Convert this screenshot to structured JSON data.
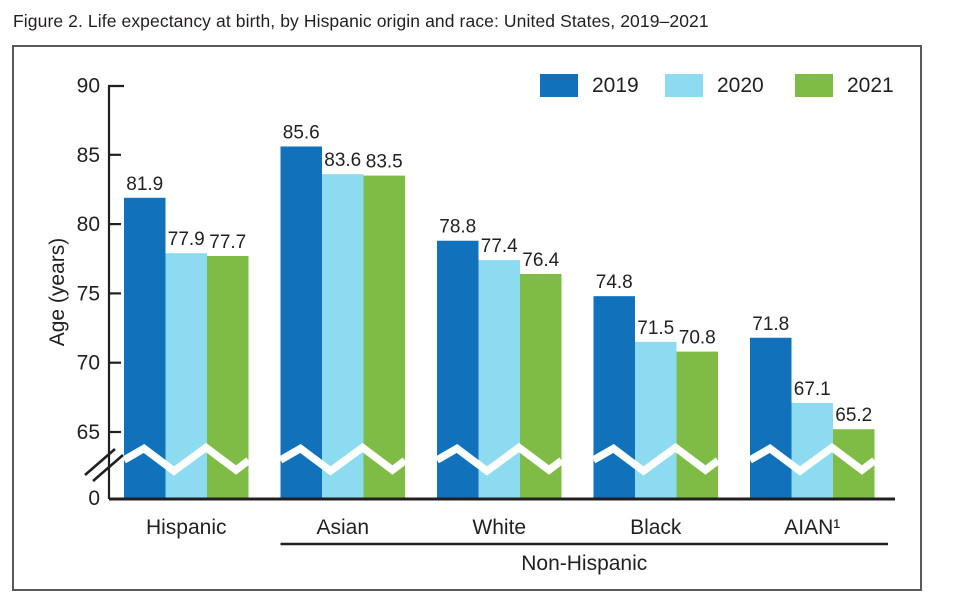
{
  "figure": {
    "caption": "Figure 2. Life expectancy at birth, by Hispanic origin and race: United States, 2019–2021"
  },
  "colors": {
    "axis_and_text": "#231F20",
    "border": "#58595B",
    "background": "#FFFFFF",
    "break_band": "#FFFFFF"
  },
  "chart_data": {
    "type": "bar",
    "title": "Figure 2. Life expectancy at birth, by Hispanic origin and race: United States, 2019–2021",
    "categories": [
      "Hispanic",
      "Asian",
      "White",
      "Black",
      "AIAN¹"
    ],
    "series": [
      {
        "name": "2019",
        "color": "#1172BB",
        "values": [
          81.9,
          85.6,
          78.8,
          74.8,
          71.8
        ]
      },
      {
        "name": "2020",
        "color": "#8DDBF1",
        "values": [
          77.9,
          83.6,
          77.4,
          71.5,
          67.1
        ]
      },
      {
        "name": "2021",
        "color": "#7EBC46",
        "values": [
          77.7,
          83.5,
          76.4,
          70.8,
          65.2
        ]
      }
    ],
    "ylabel": "Age (years)",
    "yticks": [
      "90",
      "85",
      "80",
      "75",
      "70",
      "65"
    ],
    "zero_tick": "0",
    "ylim": [
      0,
      90
    ],
    "display_range": [
      65,
      90
    ],
    "axis_break": true,
    "value_labels": true,
    "grid": false,
    "legend_position": "top-right",
    "group_label": "Non-Hispanic",
    "group_label_span": [
      "Asian",
      "AIAN¹"
    ]
  }
}
